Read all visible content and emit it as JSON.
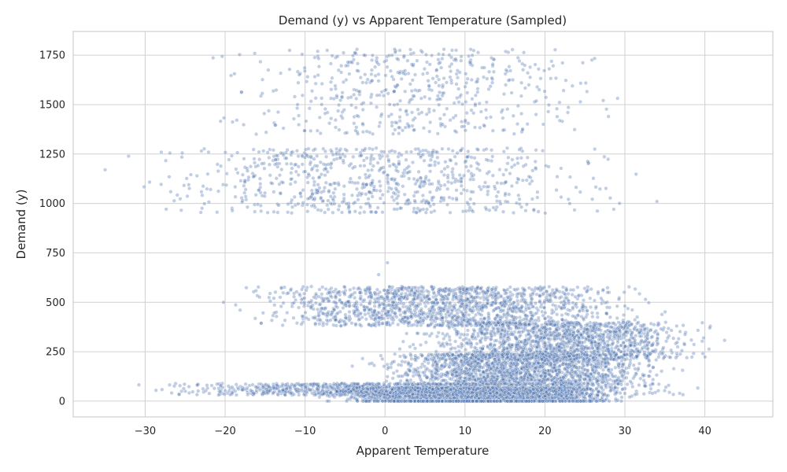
{
  "chart_data": {
    "type": "scatter",
    "title": "Demand (y) vs Apparent Temperature (Sampled)",
    "xlabel": "Apparent Temperature",
    "ylabel": "Demand (y)",
    "xlim": [
      -39.0,
      48.5
    ],
    "ylim": [
      -80,
      1870
    ],
    "xticks": [
      -30,
      -20,
      -10,
      0,
      10,
      20,
      30,
      40
    ],
    "yticks": [
      0,
      250,
      500,
      750,
      1000,
      1250,
      1500,
      1750
    ],
    "grid": true,
    "legend": "none",
    "marker_color": "#4c72b0",
    "series": [
      {
        "clusters": [
          {
            "xmin": -25,
            "xmax": 33,
            "ymin": 1350,
            "ymax": 1780,
            "n": 520
          },
          {
            "xmin": -35,
            "xmax": 34,
            "ymin": 950,
            "ymax": 1280,
            "n": 780
          },
          {
            "xmin": -22,
            "xmax": 38,
            "ymin": 380,
            "ymax": 580,
            "n": 1500
          },
          {
            "xmin": 0,
            "xmax": 44,
            "ymin": 210,
            "ymax": 400,
            "n": 1400
          },
          {
            "xmin": -5,
            "xmax": 39,
            "ymin": 80,
            "ymax": 240,
            "n": 1700
          },
          {
            "xmin": -34,
            "xmax": 42,
            "ymin": 30,
            "ymax": 90,
            "n": 1200
          },
          {
            "xmin": -10,
            "xmax": 33,
            "ymin": 0,
            "ymax": 70,
            "n": 2600
          },
          {
            "xmin": -10,
            "xmax": 33,
            "ymin": 0,
            "ymax": 0,
            "n": 420
          }
        ],
        "outliers": [
          {
            "x": 0.3,
            "y": 700
          },
          {
            "x": -0.8,
            "y": 640
          },
          {
            "x": -20.2,
            "y": 500
          },
          {
            "x": 34.0,
            "y": 1010
          },
          {
            "x": -35.0,
            "y": 1170
          },
          {
            "x": 1.2,
            "y": 1780
          }
        ]
      }
    ]
  }
}
